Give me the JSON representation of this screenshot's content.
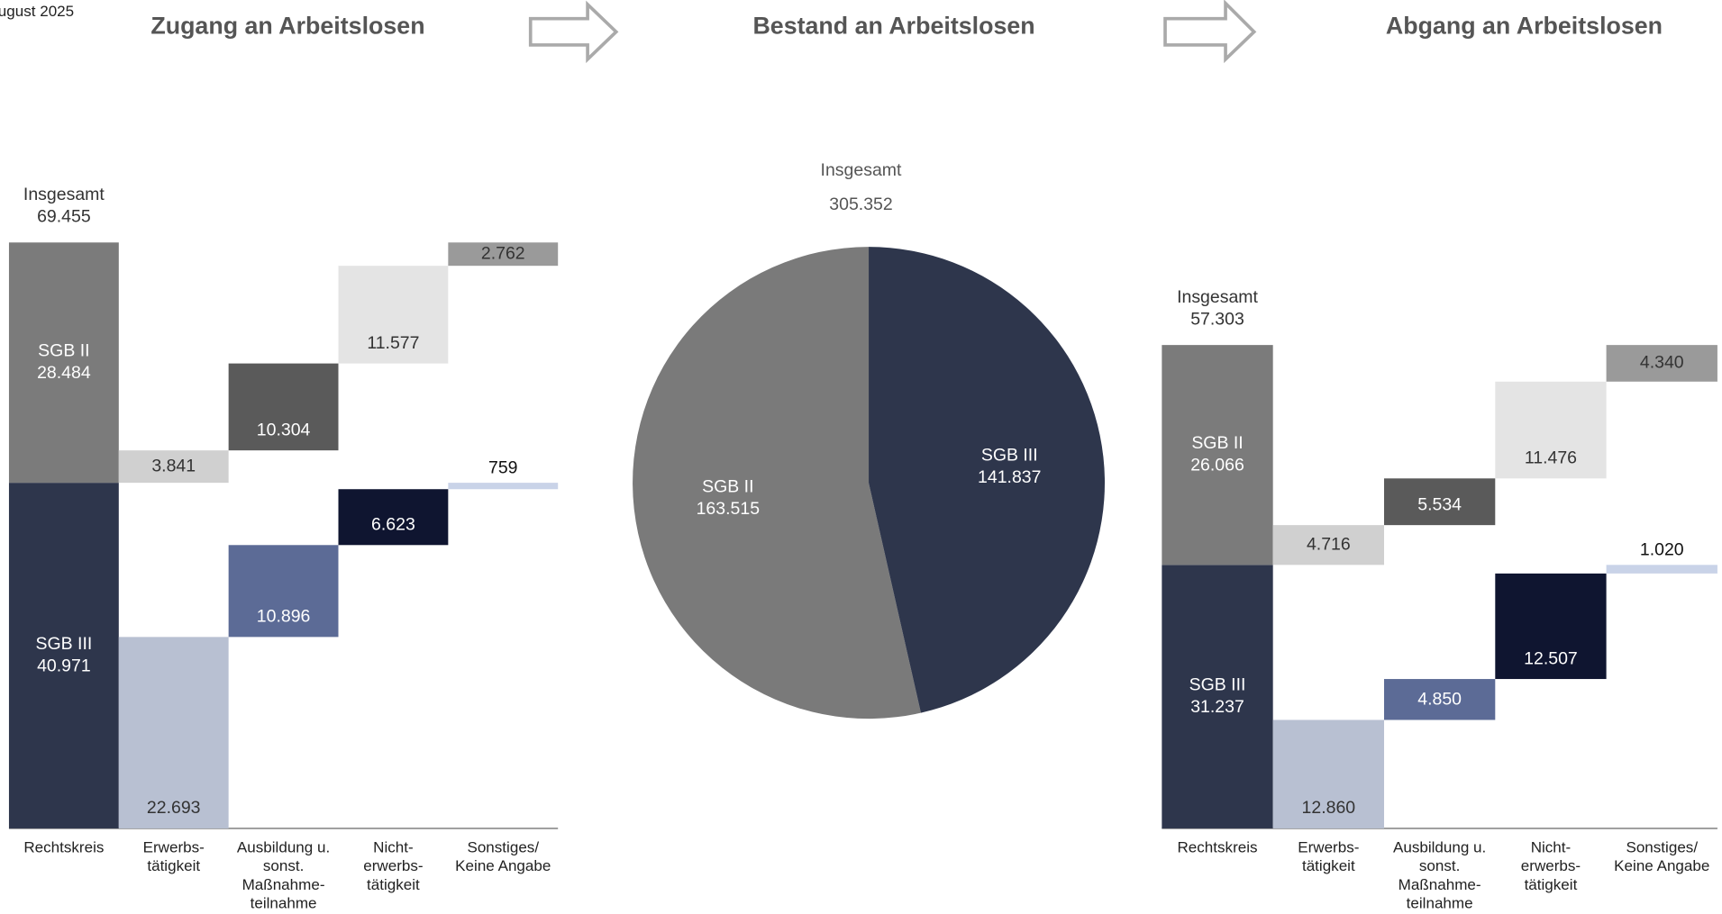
{
  "header": {
    "date": "ugust 2025"
  },
  "chart_data": [
    {
      "type": "waterfall",
      "title": "Zugang an Arbeitslosen",
      "total": {
        "label": "Insgesamt",
        "value": 69455,
        "value_label": "69.455"
      },
      "categories": [
        [
          "Rechtskreis"
        ],
        [
          "Erwerbs-",
          "tätigkeit"
        ],
        [
          "Ausbildung u.",
          "sonst.",
          "Maßnahme-",
          "teilnahme"
        ],
        [
          "Nicht-",
          "erwerbs-",
          "tätigkeit"
        ],
        [
          "Sonstiges/",
          "Keine Angabe"
        ]
      ],
      "series": [
        {
          "name": "SGB II",
          "colors": [
            "#7b7b7b",
            "#d0d0d0",
            "#5a5a5a",
            "#e4e4e4",
            "#9a9a9a"
          ],
          "values": [
            28484,
            3841,
            10304,
            11577,
            2762
          ],
          "value_labels": [
            "28.484",
            "3.841",
            "10.304",
            "11.577",
            "2.762"
          ]
        },
        {
          "name": "SGB III",
          "colors": [
            "#2e364c",
            "#b8c0d2",
            "#5c6b96",
            "#0f1530",
            "#c9d3e8"
          ],
          "values": [
            40971,
            22693,
            10896,
            6623,
            759
          ],
          "value_labels": [
            "40.971",
            "22.693",
            "10.896",
            "6.623",
            "759"
          ]
        }
      ]
    },
    {
      "type": "pie",
      "title": "Bestand an Arbeitslosen",
      "total": {
        "label": "Insgesamt",
        "value": 305352,
        "value_label": "305.352"
      },
      "categories": [
        "SGB II",
        "SGB III"
      ],
      "values": [
        163515,
        141837
      ],
      "value_labels": [
        "163.515",
        "141.837"
      ],
      "colors": [
        "#7a7a7a",
        "#2e364c"
      ]
    },
    {
      "type": "waterfall",
      "title": "Abgang an Arbeitslosen",
      "total": {
        "label": "Insgesamt",
        "value": 57303,
        "value_label": "57.303"
      },
      "categories": [
        [
          "Rechtskreis"
        ],
        [
          "Erwerbs-",
          "tätigkeit"
        ],
        [
          "Ausbildung u.",
          "sonst.",
          "Maßnahme-",
          "teilnahme"
        ],
        [
          "Nicht-",
          "erwerbs-",
          "tätigkeit"
        ],
        [
          "Sonstiges/",
          "Keine Angabe"
        ]
      ],
      "series": [
        {
          "name": "SGB II",
          "colors": [
            "#7b7b7b",
            "#d0d0d0",
            "#5a5a5a",
            "#e4e4e4",
            "#9a9a9a"
          ],
          "values": [
            26066,
            4716,
            5534,
            11476,
            4340
          ],
          "value_labels": [
            "26.066",
            "4.716",
            "5.534",
            "11.476",
            "4.340"
          ]
        },
        {
          "name": "SGB III",
          "colors": [
            "#2e364c",
            "#b8c0d2",
            "#5c6b96",
            "#0f1530",
            "#c9d3e8"
          ],
          "values": [
            31237,
            12860,
            4850,
            12507,
            1020
          ],
          "value_labels": [
            "31.237",
            "12.860",
            "4.850",
            "12.507",
            "1.020"
          ]
        }
      ]
    }
  ]
}
